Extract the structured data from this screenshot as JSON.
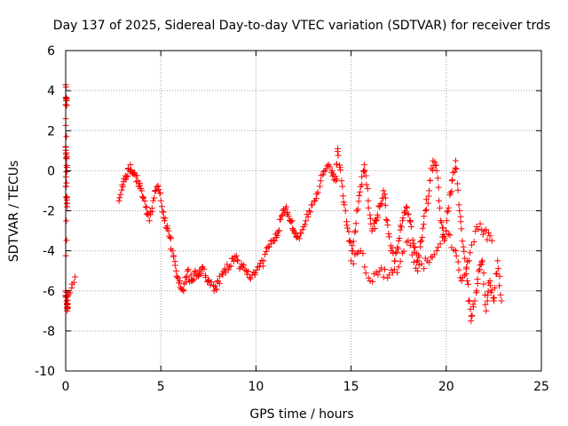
{
  "chart_data": {
    "type": "scatter",
    "title": "Day 137 of 2025, Sidereal Day-to-day VTEC variation (SDTVAR) for receiver trds",
    "xlabel": "GPS time / hours",
    "ylabel": "SDTVAR / TECUs",
    "xlim": [
      0,
      25
    ],
    "ylim": [
      -10,
      6
    ],
    "xticks": [
      0,
      5,
      10,
      15,
      20,
      25
    ],
    "yticks": [
      -10,
      -8,
      -6,
      -4,
      -2,
      0,
      2,
      4,
      6
    ],
    "grid": true,
    "marker": "+",
    "color": "#ff0000",
    "series": [
      {
        "name": "SDTVAR",
        "anchors": [
          [
            0.0,
            4.3
          ],
          [
            0.02,
            3.5
          ],
          [
            0.05,
            3.5
          ],
          [
            0.0,
            1.2
          ],
          [
            0.03,
            0.9
          ],
          [
            0.05,
            0.6
          ],
          [
            0.02,
            -0.3
          ],
          [
            0.05,
            -1.3
          ],
          [
            0.08,
            -1.8
          ],
          [
            0.0,
            -6.0
          ],
          [
            0.05,
            -6.5
          ],
          [
            0.08,
            -7.0
          ],
          [
            0.1,
            -6.8
          ],
          [
            0.15,
            -6.2
          ],
          [
            0.5,
            -5.3
          ],
          [
            2.8,
            -1.5
          ],
          [
            3.0,
            -0.8
          ],
          [
            3.2,
            -0.3
          ],
          [
            3.4,
            0.3
          ],
          [
            3.6,
            -0.2
          ],
          [
            3.8,
            -0.5
          ],
          [
            4.0,
            -1.0
          ],
          [
            4.2,
            -1.8
          ],
          [
            4.4,
            -2.5
          ],
          [
            4.6,
            -1.5
          ],
          [
            4.8,
            -0.8
          ],
          [
            5.0,
            -1.5
          ],
          [
            5.2,
            -2.5
          ],
          [
            5.4,
            -3.0
          ],
          [
            5.6,
            -4.0
          ],
          [
            5.8,
            -5.0
          ],
          [
            6.0,
            -5.5
          ],
          [
            6.2,
            -6.0
          ],
          [
            6.4,
            -5.0
          ],
          [
            6.6,
            -5.5
          ],
          [
            6.8,
            -5.0
          ],
          [
            7.0,
            -5.2
          ],
          [
            7.2,
            -4.8
          ],
          [
            7.5,
            -5.5
          ],
          [
            7.8,
            -6.0
          ],
          [
            8.0,
            -5.5
          ],
          [
            8.3,
            -5.0
          ],
          [
            8.6,
            -4.8
          ],
          [
            8.9,
            -4.3
          ],
          [
            9.2,
            -4.8
          ],
          [
            9.5,
            -5.0
          ],
          [
            9.8,
            -5.2
          ],
          [
            10.1,
            -4.8
          ],
          [
            10.4,
            -4.5
          ],
          [
            10.7,
            -3.8
          ],
          [
            11.0,
            -3.5
          ],
          [
            11.2,
            -3.0
          ],
          [
            11.4,
            -2.2
          ],
          [
            11.6,
            -1.8
          ],
          [
            11.8,
            -2.5
          ],
          [
            12.0,
            -3.0
          ],
          [
            12.2,
            -3.3
          ],
          [
            12.5,
            -2.8
          ],
          [
            12.8,
            -2.0
          ],
          [
            13.1,
            -1.5
          ],
          [
            13.4,
            -0.5
          ],
          [
            13.7,
            0.1
          ],
          [
            14.0,
            0.0
          ],
          [
            14.2,
            -0.5
          ],
          [
            14.3,
            1.1
          ],
          [
            14.5,
            -0.5
          ],
          [
            14.7,
            -2.0
          ],
          [
            14.9,
            -3.5
          ],
          [
            15.1,
            -4.0
          ],
          [
            15.3,
            -2.0
          ],
          [
            15.5,
            -0.8
          ],
          [
            15.7,
            0.3
          ],
          [
            15.9,
            -1.5
          ],
          [
            16.1,
            -3.0
          ],
          [
            16.3,
            -2.5
          ],
          [
            16.5,
            -1.8
          ],
          [
            16.7,
            -1.0
          ],
          [
            16.9,
            -2.5
          ],
          [
            17.1,
            -4.0
          ],
          [
            17.3,
            -4.5
          ],
          [
            17.5,
            -3.5
          ],
          [
            17.7,
            -2.5
          ],
          [
            17.9,
            -1.8
          ],
          [
            18.1,
            -2.5
          ],
          [
            18.3,
            -3.8
          ],
          [
            18.5,
            -4.5
          ],
          [
            18.7,
            -3.5
          ],
          [
            18.9,
            -2.0
          ],
          [
            19.1,
            -1.0
          ],
          [
            19.3,
            0.5
          ],
          [
            19.5,
            0.0
          ],
          [
            19.7,
            -2.5
          ],
          [
            19.9,
            -3.5
          ],
          [
            20.1,
            -2.0
          ],
          [
            20.3,
            -0.5
          ],
          [
            20.5,
            0.5
          ],
          [
            20.7,
            -2.0
          ],
          [
            20.9,
            -3.8
          ],
          [
            21.1,
            -5.5
          ],
          [
            21.3,
            -7.5
          ],
          [
            21.5,
            -6.5
          ],
          [
            21.7,
            -5.0
          ],
          [
            21.9,
            -4.5
          ],
          [
            22.1,
            -7.0
          ],
          [
            22.3,
            -5.5
          ],
          [
            22.5,
            -6.5
          ],
          [
            22.7,
            -4.5
          ],
          [
            22.9,
            -6.5
          ],
          [
            15.0,
            -4.5
          ],
          [
            15.5,
            -4.0
          ],
          [
            16.0,
            -5.5
          ],
          [
            16.5,
            -5.0
          ],
          [
            17.0,
            -5.2
          ],
          [
            17.5,
            -4.8
          ],
          [
            18.0,
            -3.5
          ],
          [
            18.5,
            -5.0
          ],
          [
            19.0,
            -4.5
          ],
          [
            19.5,
            -4.0
          ],
          [
            20.0,
            -3.0
          ],
          [
            20.5,
            -4.0
          ],
          [
            20.8,
            -5.5
          ],
          [
            21.2,
            -4.5
          ],
          [
            21.6,
            -2.8
          ],
          [
            22.0,
            -3.0
          ],
          [
            22.4,
            -3.5
          ]
        ]
      }
    ]
  }
}
